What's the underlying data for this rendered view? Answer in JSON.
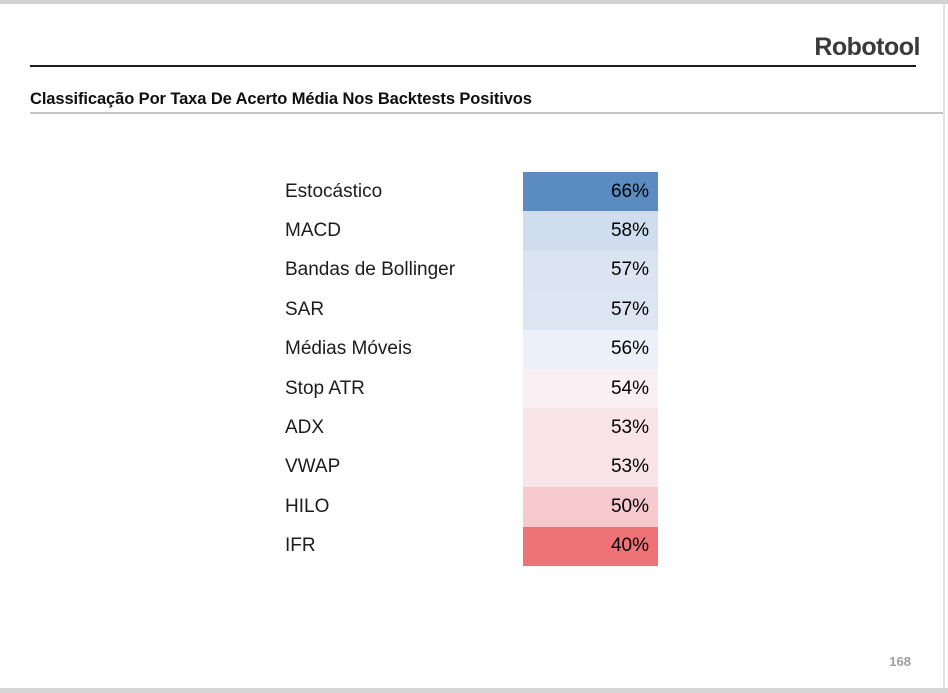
{
  "header": {
    "brand": "Robotool"
  },
  "slide": {
    "title": "Classificação Por Taxa De Acerto Média Nos Backtests Positivos"
  },
  "table": {
    "rows": [
      {
        "label": "Estocástico",
        "value_label": "66%",
        "color": "#5b8cc1"
      },
      {
        "label": "MACD",
        "value_label": "58%",
        "color": "#cfddee"
      },
      {
        "label": "Bandas de Bollinger",
        "value_label": "57%",
        "color": "#dbe4f0"
      },
      {
        "label": "SAR",
        "value_label": "57%",
        "color": "#dce5f1"
      },
      {
        "label": "Médias Móveis",
        "value_label": "56%",
        "color": "#ecf1f9"
      },
      {
        "label": "Stop ATR",
        "value_label": "54%",
        "color": "#faeff2"
      },
      {
        "label": "ADX",
        "value_label": "53%",
        "color": "#f8e4e9"
      },
      {
        "label": "VWAP",
        "value_label": "53%",
        "color": "#f8e4e9"
      },
      {
        "label": "HILO",
        "value_label": "50%",
        "color": "#f5c9cd"
      },
      {
        "label": "IFR",
        "value_label": "40%",
        "color": "#ee7377"
      }
    ]
  },
  "viewer": {
    "page_number": "168"
  },
  "chart_data": {
    "type": "heatmap",
    "title": "Classificação Por Taxa De Acerto Média Nos Backtests Positivos",
    "categories": [
      "Estocástico",
      "MACD",
      "Bandas de Bollinger",
      "SAR",
      "Médias Móveis",
      "Stop ATR",
      "ADX",
      "VWAP",
      "HILO",
      "IFR"
    ],
    "values": [
      66,
      58,
      57,
      57,
      56,
      54,
      53,
      53,
      50,
      40
    ],
    "value_unit": "%",
    "color_scale": {
      "high": "#5b8cc1",
      "mid": "#ffffff",
      "low": "#ee7377",
      "description": "blue = higher hit rate, red = lower hit rate"
    },
    "legend": "none",
    "grid": false
  }
}
